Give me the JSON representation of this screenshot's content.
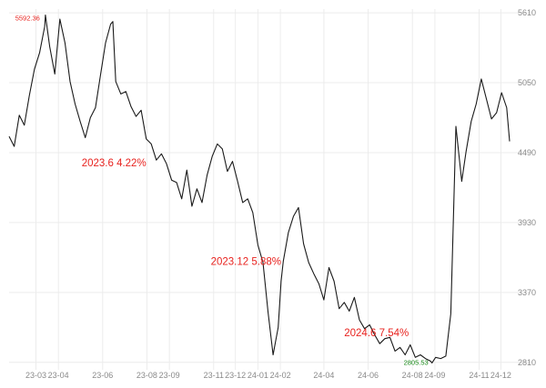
{
  "chart_data": {
    "type": "line",
    "title": "",
    "xlabel": "",
    "ylabel": "",
    "y_axis_position": "right",
    "ylim": [
      2750,
      5640
    ],
    "yticks": [
      2810,
      3370,
      3930,
      4490,
      5050,
      5610
    ],
    "grid": true,
    "legend": "none",
    "line_color": "#1a1a1a",
    "annotation_color": "#e8231f",
    "xticks": [
      {
        "label": "23-03",
        "x": "2023-03-01"
      },
      {
        "label": "23-04",
        "x": "2023-04-01"
      },
      {
        "label": "23-06",
        "x": "2023-06-01"
      },
      {
        "label": "23-08",
        "x": "2023-08-01"
      },
      {
        "label": "23-09",
        "x": "2023-09-01"
      },
      {
        "label": "23-11",
        "x": "2023-11-01"
      },
      {
        "label": "23-12",
        "x": "2023-12-01"
      },
      {
        "label": "24-01",
        "x": "2024-01-01"
      },
      {
        "label": "24-02",
        "x": "2024-02-01"
      },
      {
        "label": "24-04",
        "x": "2024-04-01"
      },
      {
        "label": "24-06",
        "x": "2024-06-01"
      },
      {
        "label": "24-08",
        "x": "2024-08-01"
      },
      {
        "label": "24-09",
        "x": "2024-09-01"
      },
      {
        "label": "24-11",
        "x": "2024-11-01"
      },
      {
        "label": "24-12",
        "x": "2024-12-01"
      }
    ],
    "annotations": [
      {
        "text": "2023.6  4.22%",
        "x": "2023-05-03",
        "y": 4380
      },
      {
        "text": "2023.12  5.88%",
        "x": "2023-10-28",
        "y": 3590
      },
      {
        "text": "2024.6   7.54%",
        "x": "2024-04-29",
        "y": 3020
      }
    ],
    "extremes": [
      {
        "text": "5592.36",
        "x": "2023-03-14",
        "y": 5592.36,
        "color": "#e8231f",
        "kind": "max"
      },
      {
        "text": "2805.53",
        "x": "2024-08-28",
        "y": 2805.53,
        "color": "#1a8a1a",
        "kind": "min"
      }
    ],
    "series": [
      {
        "x": [
          "2023-01-23",
          "2023-01-30",
          "2023-02-06",
          "2023-02-13",
          "2023-02-20",
          "2023-02-27",
          "2023-03-06",
          "2023-03-13",
          "2023-03-14",
          "2023-03-20",
          "2023-03-27",
          "2023-04-03",
          "2023-04-10",
          "2023-04-17",
          "2023-04-24",
          "2023-05-01",
          "2023-05-08",
          "2023-05-15",
          "2023-05-22",
          "2023-05-29",
          "2023-06-05",
          "2023-06-12",
          "2023-06-15",
          "2023-06-19",
          "2023-06-26",
          "2023-07-03",
          "2023-07-10",
          "2023-07-17",
          "2023-07-24",
          "2023-07-31",
          "2023-08-07",
          "2023-08-14",
          "2023-08-21",
          "2023-08-28",
          "2023-09-04",
          "2023-09-11",
          "2023-09-18",
          "2023-09-25",
          "2023-10-02",
          "2023-10-09",
          "2023-10-16",
          "2023-10-23",
          "2023-10-30",
          "2023-11-06",
          "2023-11-13",
          "2023-11-20",
          "2023-11-27",
          "2023-12-04",
          "2023-12-11",
          "2023-12-18",
          "2023-12-25",
          "2024-01-01",
          "2024-01-08",
          "2024-01-15",
          "2024-01-22",
          "2024-01-29",
          "2024-02-02",
          "2024-02-05",
          "2024-02-12",
          "2024-02-19",
          "2024-02-26",
          "2024-03-04",
          "2024-03-11",
          "2024-03-18",
          "2024-03-25",
          "2024-04-01",
          "2024-04-08",
          "2024-04-15",
          "2024-04-22",
          "2024-04-29",
          "2024-05-06",
          "2024-05-13",
          "2024-05-20",
          "2024-05-27",
          "2024-06-03",
          "2024-06-10",
          "2024-06-17",
          "2024-06-24",
          "2024-07-01",
          "2024-07-08",
          "2024-07-15",
          "2024-07-22",
          "2024-07-29",
          "2024-08-05",
          "2024-08-12",
          "2024-08-19",
          "2024-08-26",
          "2024-08-28",
          "2024-09-02",
          "2024-09-09",
          "2024-09-16",
          "2024-09-23",
          "2024-09-30",
          "2024-10-08",
          "2024-10-14",
          "2024-10-21",
          "2024-10-28",
          "2024-11-04",
          "2024-11-11",
          "2024-11-18",
          "2024-11-25",
          "2024-12-02",
          "2024-12-09",
          "2024-12-13"
        ],
        "y": [
          4620,
          4540,
          4790,
          4710,
          4950,
          5160,
          5290,
          5500,
          5592.36,
          5340,
          5120,
          5560,
          5370,
          5060,
          4880,
          4740,
          4610,
          4770,
          4850,
          5110,
          5370,
          5520,
          5540,
          5060,
          4960,
          4980,
          4860,
          4780,
          4830,
          4600,
          4560,
          4430,
          4480,
          4400,
          4270,
          4250,
          4120,
          4350,
          4060,
          4200,
          4090,
          4310,
          4460,
          4560,
          4520,
          4340,
          4420,
          4260,
          4090,
          4120,
          4010,
          3750,
          3610,
          3210,
          2870,
          3090,
          3460,
          3620,
          3850,
          3980,
          4050,
          3760,
          3610,
          3520,
          3440,
          3310,
          3570,
          3460,
          3240,
          3290,
          3220,
          3330,
          3150,
          3080,
          3110,
          3030,
          2960,
          3000,
          3010,
          2900,
          2930,
          2870,
          2950,
          2850,
          2870,
          2840,
          2820,
          2805.53,
          2850,
          2840,
          2860,
          3200,
          4700,
          4260,
          4500,
          4740,
          4880,
          5080,
          4920,
          4760,
          4810,
          4970,
          4850,
          4580
        ]
      }
    ]
  }
}
